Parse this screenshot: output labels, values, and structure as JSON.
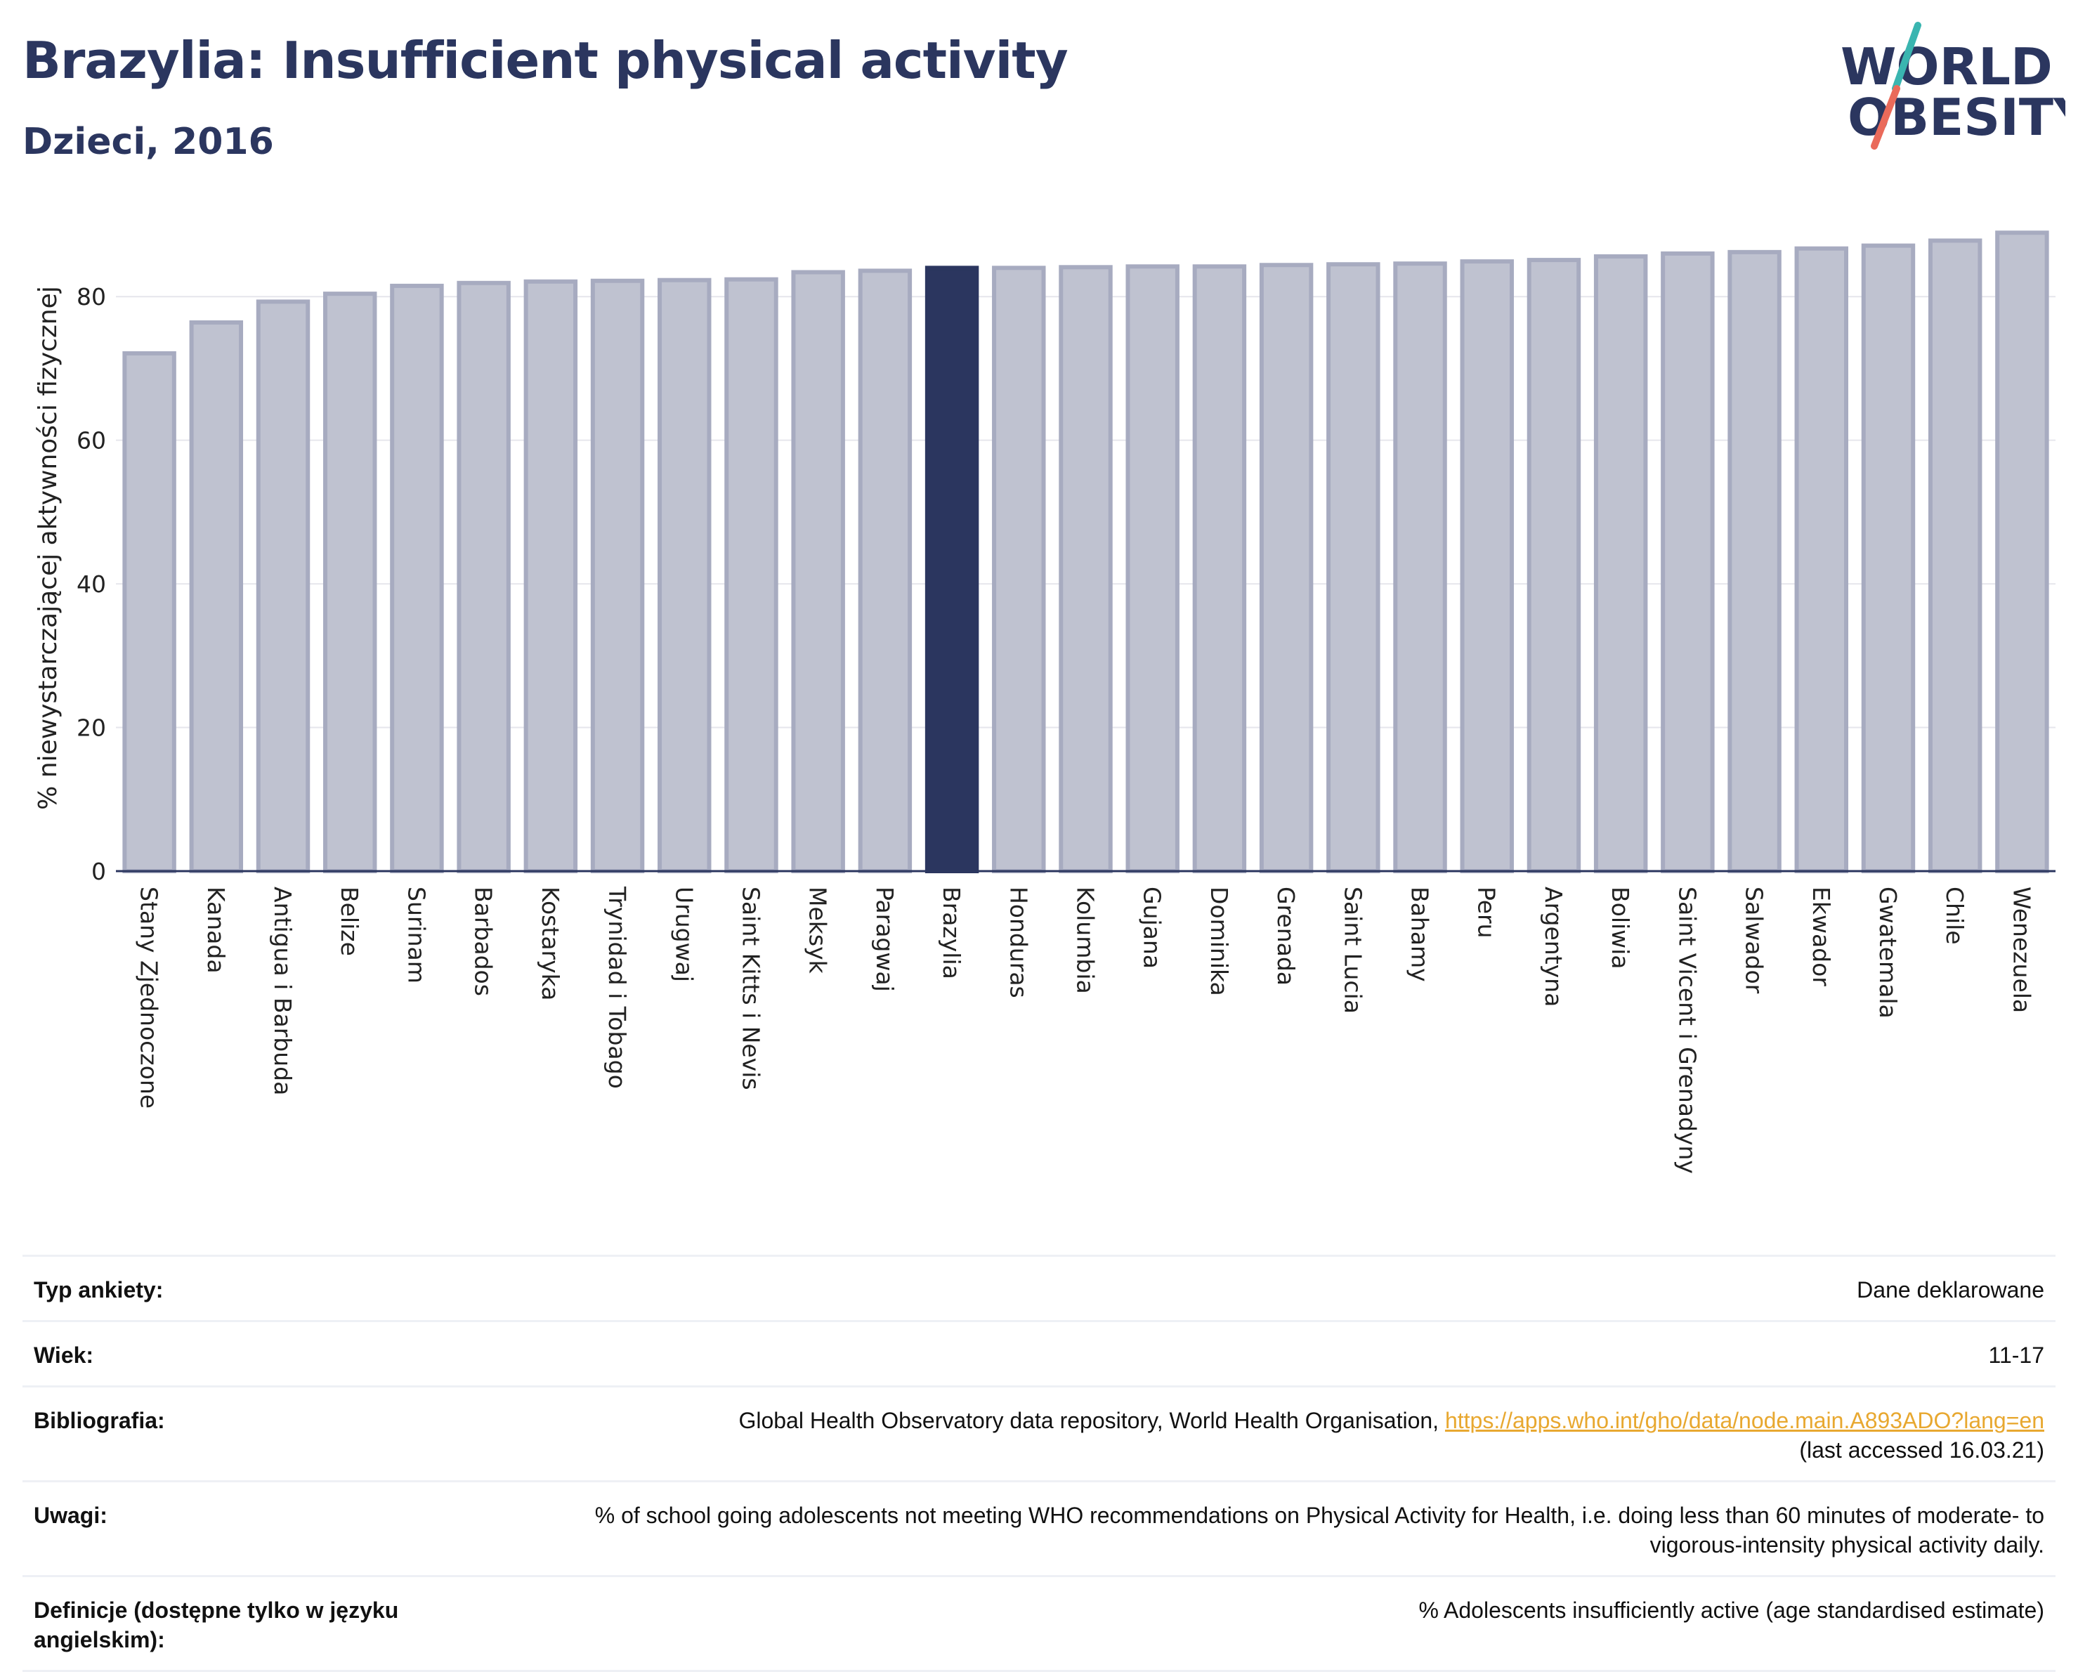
{
  "header": {
    "title": "Brazylia: Insufficient physical activity",
    "subtitle": "Dzieci, 2016"
  },
  "logo": {
    "line1": "WORLD",
    "line2": "OBESITY",
    "accent_teal": "#3ab5b0",
    "accent_coral": "#ea6a5a",
    "text_color": "#2b365f"
  },
  "colors": {
    "bar": "#bfc2d0",
    "bar_edge": "#a7abc0",
    "highlight": "#2b365f",
    "grid": "#e6e6ec",
    "axis": "#2b365f"
  },
  "chart_data": {
    "type": "bar",
    "ylabel": "% niewystarczającej aktywności fizycznej",
    "xlabel": "",
    "ylim": [
      0,
      90
    ],
    "yticks": [
      0,
      20,
      40,
      60,
      80
    ],
    "grid": true,
    "highlight_category": "Brazylia",
    "categories": [
      "Stany Zjednoczone",
      "Kanada",
      "Antigua i Barbuda",
      "Belize",
      "Surinam",
      "Barbados",
      "Kostaryka",
      "Trynidad i Tobago",
      "Urugwaj",
      "Saint Kitts i Nevis",
      "Meksyk",
      "Paragwaj",
      "Brazylia",
      "Honduras",
      "Kolumbia",
      "Gujana",
      "Dominika",
      "Grenada",
      "Saint Lucia",
      "Bahamy",
      "Peru",
      "Argentyna",
      "Boliwia",
      "Saint Vicent i Grenadyny",
      "Salwador",
      "Ekwador",
      "Gwatemala",
      "Chile",
      "Wenezuela"
    ],
    "values": [
      72.1,
      76.4,
      79.3,
      80.4,
      81.5,
      81.9,
      82.1,
      82.2,
      82.3,
      82.4,
      83.4,
      83.6,
      84.0,
      84.0,
      84.1,
      84.2,
      84.2,
      84.4,
      84.5,
      84.6,
      84.9,
      85.1,
      85.6,
      86.0,
      86.2,
      86.7,
      87.1,
      87.8,
      88.9
    ]
  },
  "notes": [
    {
      "label": "Typ ankiety:",
      "value": "Dane deklarowane"
    },
    {
      "label": "Wiek:",
      "value": "11-17"
    },
    {
      "label": "Bibliografia:",
      "value": "Global Health Observatory data repository, World Health Organisation, ",
      "link": "https://apps.who.int/gho/data/node.main.A893ADO?lang=en",
      "value_after": "(last accessed 16.03.21)"
    },
    {
      "label": "Uwagi:",
      "value": "% of school going adolescents not meeting WHO recommendations on Physical Activity for Health, i.e. doing less than 60 minutes of moderate- to vigorous-intensity physical activity daily."
    },
    {
      "label": "Definicje (dostępne tylko w języku angielskim):",
      "value": "% Adolescents insufficiently active (age standardised estimate)"
    }
  ]
}
